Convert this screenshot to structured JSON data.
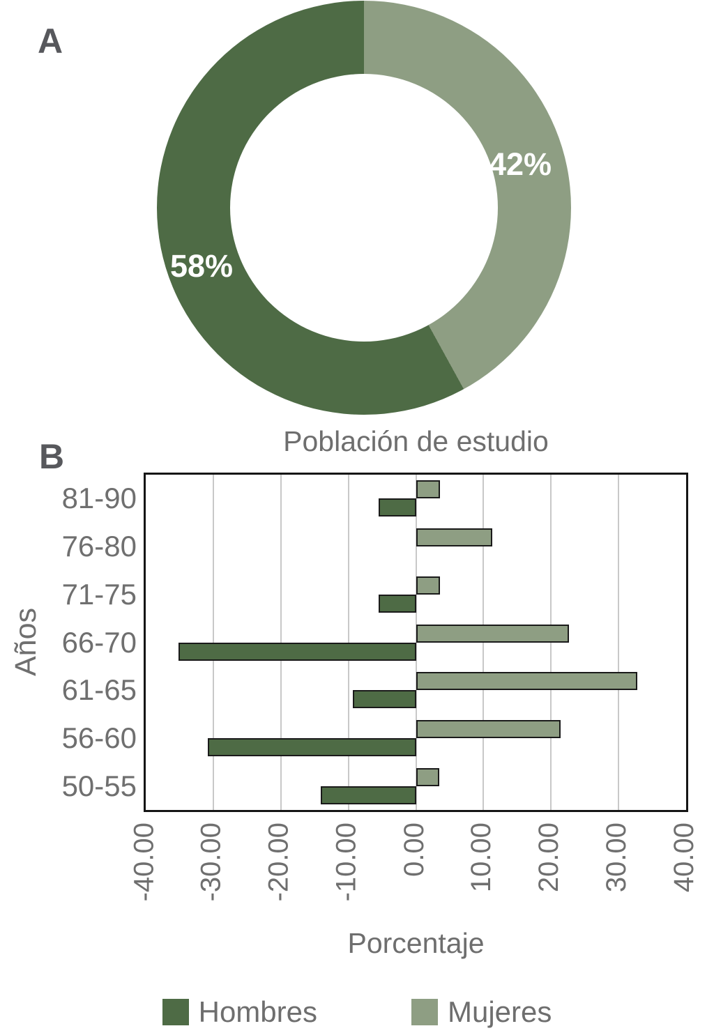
{
  "panelA": {
    "letter": "A"
  },
  "panelB": {
    "letter": "B"
  },
  "colors": {
    "hombres_dark_green": "#4E6B45",
    "mujeres_light_green": "#8E9E83",
    "bar_border": "#1a1a1a",
    "plot_border": "#151515",
    "gridline": "#c8c8c8",
    "text_gray": "#6e6e6e",
    "panel_letter_gray": "#57585c",
    "donut_label_white": "#ffffff"
  },
  "chart_data": [
    {
      "type": "pie",
      "subtype": "donut",
      "panel": "A",
      "start_angle": "top",
      "direction": "clockwise",
      "hole_ratio": 0.645,
      "segments": [
        {
          "name": "Mujeres",
          "value": 42,
          "label": "42%",
          "color": "#8E9E83"
        },
        {
          "name": "Hombres",
          "value": 58,
          "label": "58%",
          "color": "#4E6B45"
        }
      ]
    },
    {
      "type": "bar",
      "panel": "B",
      "orientation": "horizontal",
      "title": "Población de estudio",
      "xlabel": "Porcentaje",
      "ylabel": "Años",
      "categories": [
        "81-90",
        "76-80",
        "71-75",
        "66-70",
        "61-65",
        "56-60",
        "50-55"
      ],
      "series": [
        {
          "name": "Hombres",
          "color": "#4E6B45",
          "values": [
            -5.5,
            0,
            -5.5,
            -35.2,
            -9.3,
            -30.8,
            -14.1
          ]
        },
        {
          "name": "Mujeres",
          "color": "#8E9E83",
          "values": [
            3.6,
            11.3,
            3.6,
            22.7,
            32.8,
            21.4,
            3.5
          ]
        }
      ],
      "xlim": [
        -40,
        40
      ],
      "xtick_values": [
        -40,
        -30,
        -20,
        -10,
        0,
        10,
        20,
        30,
        40
      ],
      "xtick_labels": [
        "-40.00",
        "-30.00",
        "-20.00",
        "-10.00",
        "0.00",
        "10.00",
        "20.00",
        "30.00",
        "40.00"
      ],
      "grid": "vertical",
      "legend_position": "bottom"
    }
  ]
}
